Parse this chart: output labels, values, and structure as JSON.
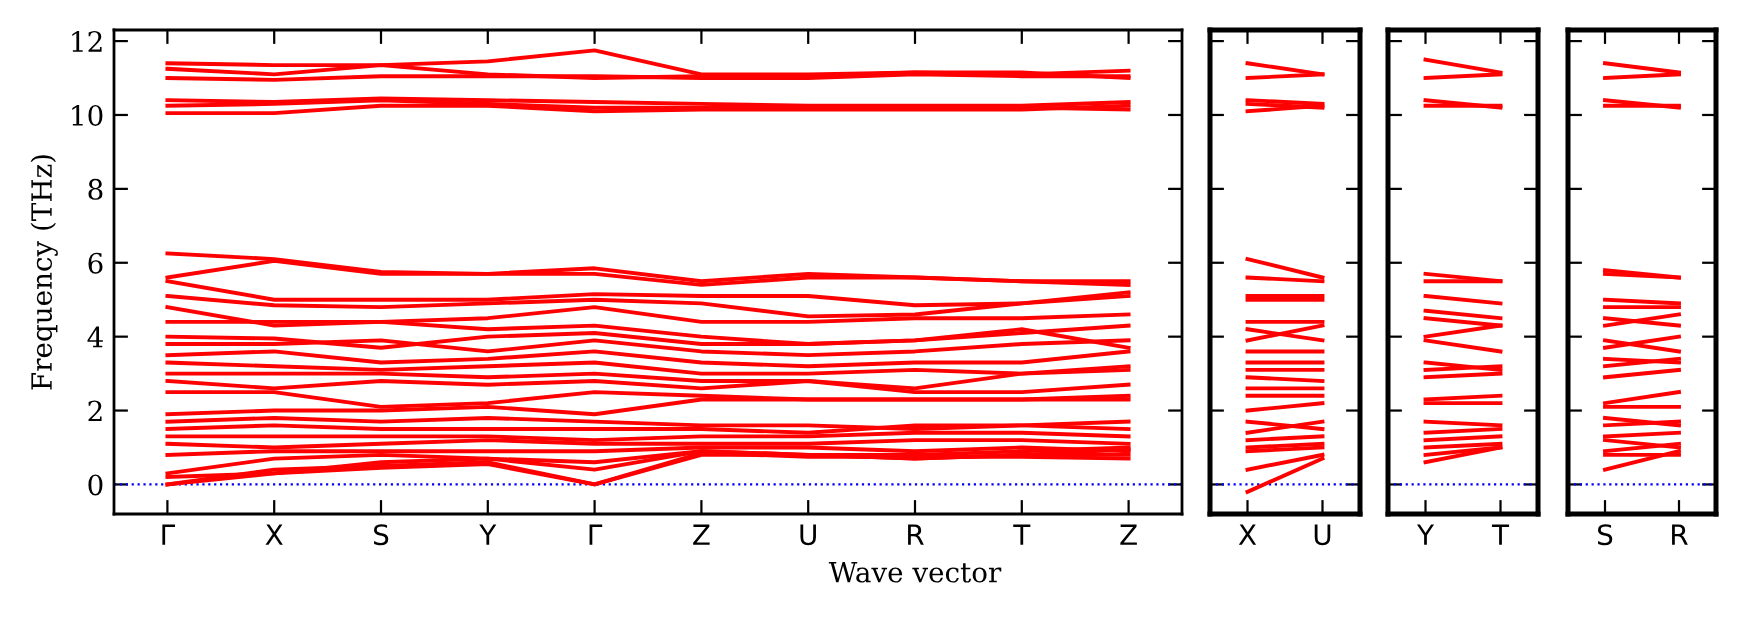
{
  "chart_data": [
    {
      "type": "line",
      "ylabel": "Frequency (THz)",
      "xlabel": "Wave vector",
      "categories": [
        "Γ",
        "X",
        "S",
        "Y",
        "Γ",
        "Z",
        "U",
        "R",
        "T",
        "Z"
      ],
      "ylim": [
        -0.8,
        12.3
      ],
      "yticks": [
        0,
        2,
        4,
        6,
        8,
        10,
        12
      ],
      "ref_lines": [
        {
          "axis": "y",
          "value": 0,
          "color": "#0000ff",
          "line_style": "dotted"
        }
      ],
      "grid": false,
      "legend": false,
      "marker": "none",
      "line_style": "solid",
      "series": [
        {
          "color": "#ff0000",
          "values": [
            11.4,
            11.35,
            11.35,
            11.45,
            11.75,
            11.1,
            11.1,
            11.15,
            11.15,
            11.0
          ]
        },
        {
          "color": "#ff0000",
          "values": [
            11.25,
            11.1,
            11.35,
            11.1,
            11.0,
            11.05,
            11.05,
            11.15,
            11.1,
            11.2
          ]
        },
        {
          "color": "#ff0000",
          "values": [
            11.0,
            10.95,
            11.05,
            11.05,
            11.05,
            11.0,
            11.0,
            11.1,
            11.05,
            11.05
          ]
        },
        {
          "color": "#ff0000",
          "values": [
            10.4,
            10.35,
            10.45,
            10.4,
            10.35,
            10.3,
            10.25,
            10.25,
            10.25,
            10.35
          ]
        },
        {
          "color": "#ff0000",
          "values": [
            10.25,
            10.3,
            10.4,
            10.3,
            10.2,
            10.2,
            10.2,
            10.2,
            10.2,
            10.15
          ]
        },
        {
          "color": "#ff0000",
          "values": [
            10.05,
            10.05,
            10.25,
            10.25,
            10.1,
            10.15,
            10.15,
            10.15,
            10.15,
            10.25
          ]
        },
        {
          "color": "#ff0000",
          "values": [
            6.25,
            6.1,
            5.75,
            5.7,
            5.85,
            5.5,
            5.7,
            5.6,
            5.5,
            5.5
          ]
        },
        {
          "color": "#ff0000",
          "values": [
            5.6,
            6.05,
            5.7,
            5.7,
            5.7,
            5.4,
            5.6,
            5.6,
            5.5,
            5.4
          ]
        },
        {
          "color": "#ff0000",
          "values": [
            5.5,
            5.0,
            5.0,
            5.0,
            5.15,
            5.1,
            5.1,
            4.85,
            4.9,
            5.1
          ]
        },
        {
          "color": "#ff0000",
          "values": [
            5.1,
            4.85,
            4.8,
            4.9,
            5.0,
            4.9,
            4.55,
            4.6,
            4.9,
            5.2
          ]
        },
        {
          "color": "#ff0000",
          "values": [
            4.8,
            4.3,
            4.4,
            4.5,
            4.8,
            4.4,
            4.4,
            4.5,
            4.5,
            4.6
          ]
        },
        {
          "color": "#ff0000",
          "values": [
            4.4,
            4.4,
            4.4,
            4.2,
            4.3,
            4.0,
            3.8,
            3.9,
            4.1,
            4.3
          ]
        },
        {
          "color": "#ff0000",
          "values": [
            4.0,
            3.95,
            3.7,
            4.0,
            4.1,
            3.8,
            3.8,
            3.9,
            4.2,
            3.7
          ]
        },
        {
          "color": "#ff0000",
          "values": [
            3.8,
            3.8,
            3.9,
            3.6,
            3.9,
            3.6,
            3.5,
            3.6,
            3.8,
            3.9
          ]
        },
        {
          "color": "#ff0000",
          "values": [
            3.5,
            3.6,
            3.3,
            3.4,
            3.6,
            3.3,
            3.2,
            3.3,
            3.3,
            3.6
          ]
        },
        {
          "color": "#ff0000",
          "values": [
            3.3,
            3.2,
            3.1,
            3.2,
            3.3,
            3.0,
            3.0,
            3.1,
            3.0,
            3.2
          ]
        },
        {
          "color": "#ff0000",
          "values": [
            3.0,
            3.0,
            3.0,
            2.9,
            3.0,
            2.8,
            2.8,
            2.6,
            3.0,
            3.1
          ]
        },
        {
          "color": "#ff0000",
          "values": [
            2.8,
            2.6,
            2.8,
            2.7,
            2.8,
            2.6,
            2.8,
            2.5,
            2.5,
            2.7
          ]
        },
        {
          "color": "#ff0000",
          "values": [
            2.5,
            2.5,
            2.1,
            2.2,
            2.5,
            2.4,
            2.3,
            2.3,
            2.3,
            2.4
          ]
        },
        {
          "color": "#ff0000",
          "values": [
            1.9,
            2.0,
            2.0,
            2.1,
            1.9,
            2.3,
            2.3,
            2.3,
            2.3,
            2.3
          ]
        },
        {
          "color": "#ff0000",
          "values": [
            1.7,
            1.8,
            1.7,
            1.8,
            1.7,
            1.6,
            1.6,
            1.5,
            1.6,
            1.7
          ]
        },
        {
          "color": "#ff0000",
          "values": [
            1.5,
            1.6,
            1.5,
            1.5,
            1.5,
            1.5,
            1.4,
            1.6,
            1.6,
            1.5
          ]
        },
        {
          "color": "#ff0000",
          "values": [
            1.3,
            1.3,
            1.3,
            1.3,
            1.2,
            1.3,
            1.3,
            1.4,
            1.4,
            1.3
          ]
        },
        {
          "color": "#ff0000",
          "values": [
            1.1,
            1.0,
            1.1,
            1.2,
            1.1,
            1.1,
            1.1,
            1.2,
            1.2,
            1.1
          ]
        },
        {
          "color": "#ff0000",
          "values": [
            0.8,
            0.9,
            0.9,
            0.9,
            0.9,
            1.0,
            1.0,
            0.9,
            1.0,
            0.9
          ]
        },
        {
          "color": "#ff0000",
          "values": [
            0.3,
            0.7,
            0.8,
            0.7,
            0.6,
            0.9,
            0.8,
            0.8,
            0.9,
            1.0
          ]
        },
        {
          "color": "#ff0000",
          "values": [
            0.2,
            0.3,
            0.6,
            0.7,
            0.4,
            0.9,
            0.8,
            0.7,
            0.8,
            0.8
          ]
        },
        {
          "color": "#ff0000",
          "values": [
            0,
            0.4,
            0.5,
            0.6,
            0,
            0.8,
            0.8,
            0.7,
            0.8,
            0.95
          ]
        },
        {
          "color": "#ff0000",
          "values": [
            0,
            0.3,
            0.45,
            0.55,
            0,
            0.85,
            0.75,
            0.75,
            0.75,
            0.7
          ]
        }
      ]
    },
    {
      "type": "line",
      "categories": [
        "X",
        "U"
      ],
      "ylim": [
        -0.8,
        12.3
      ],
      "yticks": [
        0,
        2,
        4,
        6,
        8,
        10,
        12
      ],
      "tick_labels": "x",
      "ref_lines": [
        {
          "axis": "y",
          "value": 0,
          "color": "#0000ff",
          "line_style": "dotted"
        }
      ],
      "grid": false,
      "legend": false,
      "marker": "none",
      "line_style": "solid",
      "series": [
        {
          "color": "#ff0000",
          "values": [
            11.4,
            11.1
          ]
        },
        {
          "color": "#ff0000",
          "values": [
            11.0,
            11.1
          ]
        },
        {
          "color": "#ff0000",
          "values": [
            10.4,
            10.3
          ]
        },
        {
          "color": "#ff0000",
          "values": [
            10.3,
            10.2
          ]
        },
        {
          "color": "#ff0000",
          "values": [
            10.1,
            10.25
          ]
        },
        {
          "color": "#ff0000",
          "values": [
            6.1,
            5.6
          ]
        },
        {
          "color": "#ff0000",
          "values": [
            5.6,
            5.5
          ]
        },
        {
          "color": "#ff0000",
          "values": [
            5.1,
            5.1
          ]
        },
        {
          "color": "#ff0000",
          "values": [
            5.0,
            5.0
          ]
        },
        {
          "color": "#ff0000",
          "values": [
            4.4,
            4.4
          ]
        },
        {
          "color": "#ff0000",
          "values": [
            4.2,
            3.9
          ]
        },
        {
          "color": "#ff0000",
          "values": [
            3.9,
            4.3
          ]
        },
        {
          "color": "#ff0000",
          "values": [
            3.6,
            3.6
          ]
        },
        {
          "color": "#ff0000",
          "values": [
            3.3,
            3.3
          ]
        },
        {
          "color": "#ff0000",
          "values": [
            3.1,
            3.1
          ]
        },
        {
          "color": "#ff0000",
          "values": [
            2.9,
            2.8
          ]
        },
        {
          "color": "#ff0000",
          "values": [
            2.6,
            2.6
          ]
        },
        {
          "color": "#ff0000",
          "values": [
            2.4,
            2.4
          ]
        },
        {
          "color": "#ff0000",
          "values": [
            2.0,
            2.2
          ]
        },
        {
          "color": "#ff0000",
          "values": [
            1.7,
            1.5
          ]
        },
        {
          "color": "#ff0000",
          "values": [
            1.4,
            1.7
          ]
        },
        {
          "color": "#ff0000",
          "values": [
            1.2,
            1.3
          ]
        },
        {
          "color": "#ff0000",
          "values": [
            1.0,
            1.1
          ]
        },
        {
          "color": "#ff0000",
          "values": [
            0.9,
            1.0
          ]
        },
        {
          "color": "#ff0000",
          "values": [
            0.4,
            0.8
          ]
        },
        {
          "color": "#ff0000",
          "values": [
            -0.2,
            0.7
          ]
        }
      ]
    },
    {
      "type": "line",
      "categories": [
        "Y",
        "T"
      ],
      "ylim": [
        -0.8,
        12.3
      ],
      "yticks": [
        0,
        2,
        4,
        6,
        8,
        10,
        12
      ],
      "tick_labels": "x",
      "ref_lines": [
        {
          "axis": "y",
          "value": 0,
          "color": "#0000ff",
          "line_style": "dotted"
        }
      ],
      "grid": false,
      "legend": false,
      "marker": "none",
      "line_style": "solid",
      "series": [
        {
          "color": "#ff0000",
          "values": [
            11.5,
            11.15
          ]
        },
        {
          "color": "#ff0000",
          "values": [
            11.0,
            11.1
          ]
        },
        {
          "color": "#ff0000",
          "values": [
            10.4,
            10.2
          ]
        },
        {
          "color": "#ff0000",
          "values": [
            10.25,
            10.25
          ]
        },
        {
          "color": "#ff0000",
          "values": [
            5.7,
            5.5
          ]
        },
        {
          "color": "#ff0000",
          "values": [
            5.5,
            5.5
          ]
        },
        {
          "color": "#ff0000",
          "values": [
            5.1,
            4.9
          ]
        },
        {
          "color": "#ff0000",
          "values": [
            4.7,
            4.5
          ]
        },
        {
          "color": "#ff0000",
          "values": [
            4.5,
            4.3
          ]
        },
        {
          "color": "#ff0000",
          "values": [
            4.0,
            4.3
          ]
        },
        {
          "color": "#ff0000",
          "values": [
            3.9,
            3.6
          ]
        },
        {
          "color": "#ff0000",
          "values": [
            3.3,
            3.1
          ]
        },
        {
          "color": "#ff0000",
          "values": [
            3.1,
            3.2
          ]
        },
        {
          "color": "#ff0000",
          "values": [
            2.9,
            3.0
          ]
        },
        {
          "color": "#ff0000",
          "values": [
            2.3,
            2.4
          ]
        },
        {
          "color": "#ff0000",
          "values": [
            2.2,
            2.2
          ]
        },
        {
          "color": "#ff0000",
          "values": [
            1.7,
            1.6
          ]
        },
        {
          "color": "#ff0000",
          "values": [
            1.4,
            1.5
          ]
        },
        {
          "color": "#ff0000",
          "values": [
            1.2,
            1.3
          ]
        },
        {
          "color": "#ff0000",
          "values": [
            1.0,
            1.1
          ]
        },
        {
          "color": "#ff0000",
          "values": [
            0.8,
            1.0
          ]
        },
        {
          "color": "#ff0000",
          "values": [
            0.6,
            1.0
          ]
        }
      ]
    },
    {
      "type": "line",
      "categories": [
        "S",
        "R"
      ],
      "ylim": [
        -0.8,
        12.3
      ],
      "yticks": [
        0,
        2,
        4,
        6,
        8,
        10,
        12
      ],
      "tick_labels": "x",
      "ref_lines": [
        {
          "axis": "y",
          "value": 0,
          "color": "#0000ff",
          "line_style": "dotted"
        }
      ],
      "grid": false,
      "legend": false,
      "marker": "none",
      "line_style": "solid",
      "series": [
        {
          "color": "#ff0000",
          "values": [
            11.4,
            11.15
          ]
        },
        {
          "color": "#ff0000",
          "values": [
            11.0,
            11.1
          ]
        },
        {
          "color": "#ff0000",
          "values": [
            10.4,
            10.2
          ]
        },
        {
          "color": "#ff0000",
          "values": [
            10.25,
            10.25
          ]
        },
        {
          "color": "#ff0000",
          "values": [
            5.8,
            5.6
          ]
        },
        {
          "color": "#ff0000",
          "values": [
            5.7,
            5.6
          ]
        },
        {
          "color": "#ff0000",
          "values": [
            5.0,
            4.9
          ]
        },
        {
          "color": "#ff0000",
          "values": [
            4.8,
            4.8
          ]
        },
        {
          "color": "#ff0000",
          "values": [
            4.5,
            4.3
          ]
        },
        {
          "color": "#ff0000",
          "values": [
            4.3,
            4.6
          ]
        },
        {
          "color": "#ff0000",
          "values": [
            3.9,
            3.6
          ]
        },
        {
          "color": "#ff0000",
          "values": [
            3.7,
            4.0
          ]
        },
        {
          "color": "#ff0000",
          "values": [
            3.4,
            3.3
          ]
        },
        {
          "color": "#ff0000",
          "values": [
            3.2,
            3.4
          ]
        },
        {
          "color": "#ff0000",
          "values": [
            2.9,
            3.1
          ]
        },
        {
          "color": "#ff0000",
          "values": [
            2.2,
            2.5
          ]
        },
        {
          "color": "#ff0000",
          "values": [
            2.1,
            2.1
          ]
        },
        {
          "color": "#ff0000",
          "values": [
            1.8,
            1.6
          ]
        },
        {
          "color": "#ff0000",
          "values": [
            1.6,
            1.7
          ]
        },
        {
          "color": "#ff0000",
          "values": [
            1.3,
            1.4
          ]
        },
        {
          "color": "#ff0000",
          "values": [
            1.2,
            1.0
          ]
        },
        {
          "color": "#ff0000",
          "values": [
            0.9,
            1.1
          ]
        },
        {
          "color": "#ff0000",
          "values": [
            0.8,
            0.8
          ]
        },
        {
          "color": "#ff0000",
          "values": [
            0.4,
            0.9
          ]
        }
      ]
    }
  ]
}
